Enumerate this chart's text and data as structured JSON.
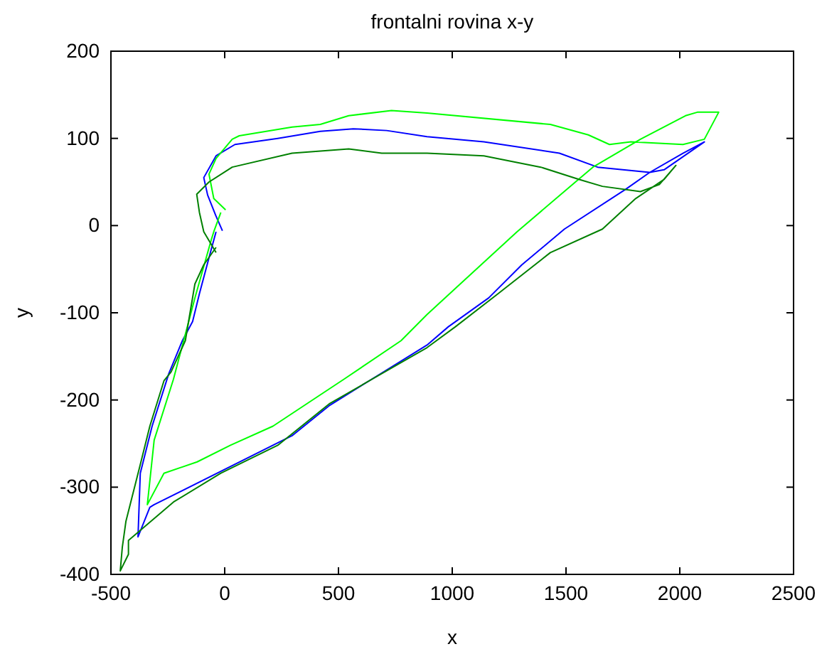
{
  "chart_data": {
    "type": "line",
    "title": "frontalni rovina x-y",
    "xlabel": "x",
    "ylabel": "y",
    "xlim": [
      -500,
      2500
    ],
    "xticks": [
      -500,
      0,
      500,
      1000,
      1500,
      2000,
      2500
    ],
    "ylim": [
      -400,
      200
    ],
    "yticks": [
      -400,
      -300,
      -200,
      -100,
      0,
      100,
      200
    ],
    "marker": "none",
    "line_style": "solid",
    "series": [
      {
        "color": "#0000ff",
        "x": [
          -10,
          -40,
          -75,
          -92,
          -38,
          45,
          233,
          420,
          565,
          712,
          889,
          1139,
          1471,
          1639,
          1868,
          1931,
          2108,
          2014,
          1868,
          1764,
          1493,
          1306,
          1160,
          983,
          889,
          462,
          296,
          -310,
          -329,
          -381,
          -371,
          -319,
          -246,
          -186,
          -141,
          -111,
          -61,
          -38
        ],
        "values": [
          -6,
          12,
          35,
          55,
          80,
          93,
          100,
          108,
          111,
          109,
          102,
          96,
          83,
          67,
          61,
          64,
          96,
          83,
          61,
          42,
          -4,
          -45,
          -83,
          -116,
          -137,
          -206,
          -241,
          -320,
          -323,
          -357,
          -284,
          -230,
          -170,
          -132,
          -110,
          -78,
          -29,
          -7
        ]
      },
      {
        "color": "#00ff00",
        "x": [
          4,
          -48,
          -69,
          -38,
          33,
          64,
          296,
          420,
          545,
          733,
          889,
          1431,
          1598,
          1691,
          1785,
          2014,
          2108,
          2171,
          2077,
          2025,
          1827,
          1618,
          1285,
          1035,
          889,
          775,
          525,
          212,
          25,
          -121,
          -267,
          -340,
          -310,
          -225,
          -131,
          -61,
          -48,
          -17
        ],
        "values": [
          18,
          31,
          59,
          77,
          99,
          103,
          113,
          116,
          126,
          132,
          129,
          116,
          104,
          93,
          96,
          93,
          99,
          130,
          130,
          126,
          99,
          67,
          -7,
          -67,
          -102,
          -132,
          -176,
          -230,
          -252,
          -271,
          -284,
          -320,
          -246,
          -176,
          -83,
          -18,
          -7,
          15
        ]
      },
      {
        "color": "#008000",
        "x": [
          -38,
          -92,
          -111,
          -123,
          -69,
          33,
          296,
          545,
          690,
          889,
          1139,
          1389,
          1556,
          1660,
          1827,
          1910,
          1983,
          1931,
          1806,
          1660,
          1431,
          1202,
          1014,
          889,
          462,
          233,
          -17,
          -225,
          -423,
          -423,
          -459,
          -450,
          -434,
          -371,
          -329,
          -267,
          -236,
          -173,
          -131,
          -92,
          -38
        ],
        "values": [
          -31,
          -7,
          15,
          36,
          50,
          67,
          83,
          88,
          83,
          83,
          80,
          67,
          53,
          45,
          39,
          47,
          69,
          53,
          31,
          -4,
          -31,
          -78,
          -116,
          -140,
          -204,
          -252,
          -284,
          -317,
          -361,
          -377,
          -396,
          -369,
          -339,
          -274,
          -230,
          -178,
          -168,
          -132,
          -67,
          -45,
          -25
        ]
      }
    ]
  }
}
